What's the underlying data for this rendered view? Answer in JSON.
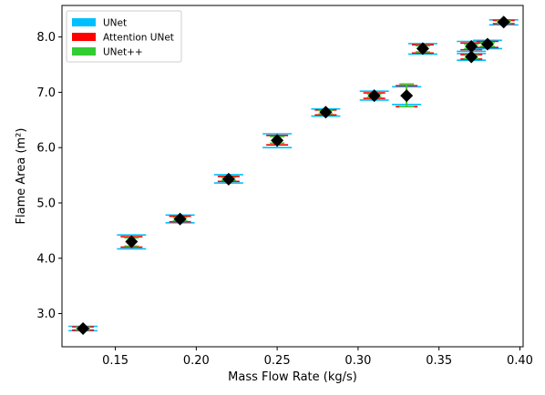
{
  "chart_data": {
    "type": "scatter",
    "title": "",
    "xlabel": "Mass Flow Rate (kg/s)",
    "ylabel": "Flame Area (m²)",
    "xlim": [
      0.117,
      0.402
    ],
    "ylim": [
      2.4,
      8.57
    ],
    "xticks": [
      0.15,
      0.2,
      0.25,
      0.3,
      0.35,
      0.4
    ],
    "xtick_labels": [
      "0.15",
      "0.20",
      "0.25",
      "0.30",
      "0.35",
      "0.40"
    ],
    "yticks": [
      3.0,
      4.0,
      5.0,
      6.0,
      7.0,
      8.0
    ],
    "ytick_labels": [
      "3.0",
      "4.0",
      "5.0",
      "6.0",
      "7.0",
      "8.0"
    ],
    "grid": false,
    "legend_position": "top-left",
    "series": [
      {
        "name": "UNet",
        "color": "#00bfff",
        "kind": "error-range"
      },
      {
        "name": "Attention UNet",
        "color": "#ff0000",
        "kind": "error-range"
      },
      {
        "name": "UNet++",
        "color": "#33cc33",
        "kind": "error-range"
      }
    ],
    "points": [
      {
        "x": 0.13,
        "y": 2.73,
        "ranges": [
          [
            2.69,
            2.77
          ],
          [
            2.7,
            2.76
          ],
          [
            2.71,
            2.75
          ]
        ]
      },
      {
        "x": 0.16,
        "y": 4.3,
        "ranges": [
          [
            4.17,
            4.42
          ],
          [
            4.2,
            4.39
          ],
          [
            4.22,
            4.37
          ]
        ]
      },
      {
        "x": 0.19,
        "y": 4.71,
        "ranges": [
          [
            4.64,
            4.78
          ],
          [
            4.66,
            4.76
          ],
          [
            4.68,
            4.74
          ]
        ]
      },
      {
        "x": 0.22,
        "y": 5.43,
        "ranges": [
          [
            5.36,
            5.51
          ],
          [
            5.39,
            5.48
          ],
          [
            5.41,
            5.46
          ]
        ]
      },
      {
        "x": 0.25,
        "y": 6.13,
        "ranges": [
          [
            6.0,
            6.25
          ],
          [
            6.05,
            6.22
          ],
          [
            6.08,
            6.2
          ]
        ]
      },
      {
        "x": 0.28,
        "y": 6.64,
        "ranges": [
          [
            6.57,
            6.7
          ],
          [
            6.59,
            6.68
          ],
          [
            6.61,
            6.67
          ]
        ]
      },
      {
        "x": 0.31,
        "y": 6.94,
        "ranges": [
          [
            6.86,
            7.02
          ],
          [
            6.89,
            6.99
          ],
          [
            6.91,
            6.97
          ]
        ]
      },
      {
        "x": 0.33,
        "y": 6.94,
        "ranges": [
          [
            6.78,
            7.1
          ],
          [
            6.74,
            7.12
          ],
          [
            6.74,
            7.15
          ]
        ]
      },
      {
        "x": 0.34,
        "y": 7.79,
        "ranges": [
          [
            7.69,
            7.88
          ],
          [
            7.71,
            7.86
          ],
          [
            7.73,
            7.84
          ]
        ]
      },
      {
        "x": 0.37,
        "y": 7.64,
        "ranges": [
          [
            7.58,
            7.7
          ],
          [
            7.6,
            7.68
          ],
          [
            7.61,
            7.67
          ]
        ]
      },
      {
        "x": 0.37,
        "y": 7.83,
        "ranges": [
          [
            7.74,
            7.92
          ],
          [
            7.77,
            7.89
          ],
          [
            7.79,
            7.87
          ]
        ]
      },
      {
        "x": 0.38,
        "y": 7.87,
        "ranges": [
          [
            7.79,
            7.94
          ],
          [
            7.81,
            7.92
          ],
          [
            7.83,
            7.9
          ]
        ]
      },
      {
        "x": 0.39,
        "y": 8.27,
        "ranges": [
          [
            8.22,
            8.31
          ],
          [
            8.24,
            8.3
          ],
          [
            8.25,
            8.29
          ]
        ]
      }
    ]
  }
}
